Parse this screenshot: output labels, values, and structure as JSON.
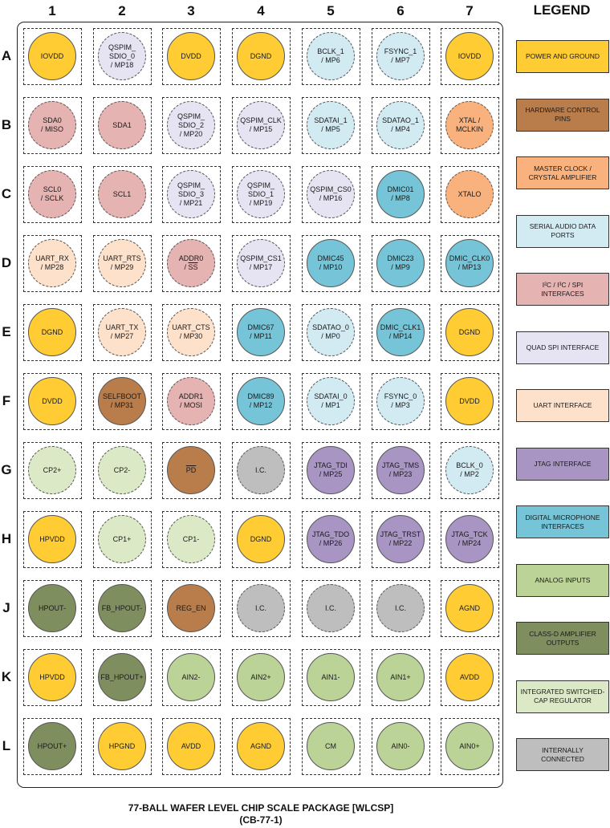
{
  "columns": [
    "1",
    "2",
    "3",
    "4",
    "5",
    "6",
    "7"
  ],
  "rows": [
    "A",
    "B",
    "C",
    "D",
    "E",
    "F",
    "G",
    "H",
    "J",
    "K",
    "L"
  ],
  "legend_title": "LEGEND",
  "legend": [
    {
      "key": "power",
      "label": "POWER AND GROUND",
      "color": "#FFCC33"
    },
    {
      "key": "hw",
      "label": "HARDWARE CONTROL PINS",
      "color": "#B97C4B"
    },
    {
      "key": "mclk",
      "label": "MASTER CLOCK / CRYSTAL AMPLIFIER",
      "color": "#F9B27E"
    },
    {
      "key": "serial",
      "label": "SERIAL AUDIO DATA PORTS",
      "color": "#D2EAF2"
    },
    {
      "key": "i2c",
      "label": "I²C / I³C / SPI INTERFACES",
      "color": "#E5B3B1"
    },
    {
      "key": "qspi",
      "label": "QUAD SPI INTERFACE",
      "color": "#E6E3F2"
    },
    {
      "key": "uart",
      "label": "UART INTERFACE",
      "color": "#FDE1CB"
    },
    {
      "key": "jtag",
      "label": "JTAG INTERFACE",
      "color": "#A895C4"
    },
    {
      "key": "dmic",
      "label": "DIGITAL MICROPHONE INTERFACES",
      "color": "#76C4D7"
    },
    {
      "key": "analog",
      "label": "ANALOG INPUTS",
      "color": "#BBD396"
    },
    {
      "key": "classd",
      "label": "CLASS-D AMPLIFIER OUTPUTS",
      "color": "#7E8E5F"
    },
    {
      "key": "chgpump",
      "label": "INTEGRATED SWITCHED-CAP REGULATOR",
      "color": "#DCE9C6"
    },
    {
      "key": "ic",
      "label": "INTERNALLY CONNECTED",
      "color": "#BEBEBE"
    }
  ],
  "balls": [
    [
      {
        "t": [
          "IOVDD"
        ],
        "c": "power"
      },
      {
        "t": [
          "QSPIM_",
          "SDIO_0",
          "/ MP18"
        ],
        "c": "qspi"
      },
      {
        "t": [
          "DVDD"
        ],
        "c": "power"
      },
      {
        "t": [
          "DGND"
        ],
        "c": "power"
      },
      {
        "t": [
          "BCLK_1",
          "/ MP6"
        ],
        "c": "serial"
      },
      {
        "t": [
          "FSYNC_1",
          "/ MP7"
        ],
        "c": "serial"
      },
      {
        "t": [
          "IOVDD"
        ],
        "c": "power"
      }
    ],
    [
      {
        "t": [
          "SDA0",
          "/ MISO"
        ],
        "c": "i2c"
      },
      {
        "t": [
          "SDA1"
        ],
        "c": "i2c"
      },
      {
        "t": [
          "QSPIM_",
          "SDIO_2",
          "/ MP20"
        ],
        "c": "qspi"
      },
      {
        "t": [
          "QSPIM_CLK",
          "/ MP15"
        ],
        "c": "qspi"
      },
      {
        "t": [
          "SDATAI_1",
          "/ MP5"
        ],
        "c": "serial"
      },
      {
        "t": [
          "SDATAO_1",
          "/ MP4"
        ],
        "c": "serial"
      },
      {
        "t": [
          "XTAL /",
          "MCLKIN"
        ],
        "c": "mclk"
      }
    ],
    [
      {
        "t": [
          "SCL0",
          "/ SCLK"
        ],
        "c": "i2c"
      },
      {
        "t": [
          "SCL1"
        ],
        "c": "i2c"
      },
      {
        "t": [
          "QSPIM_",
          "SDIO_3",
          "/ MP21"
        ],
        "c": "qspi"
      },
      {
        "t": [
          "QSPIM_",
          "SDIO_1",
          "/ MP19"
        ],
        "c": "qspi"
      },
      {
        "t": [
          "QSPIM_CS0",
          "/ MP16"
        ],
        "c": "qspi"
      },
      {
        "t": [
          "DMIC01",
          "/ MP8"
        ],
        "c": "dmic"
      },
      {
        "t": [
          "XTALO"
        ],
        "c": "mclk"
      }
    ],
    [
      {
        "t": [
          "UART_RX",
          "/ MP28"
        ],
        "c": "uart"
      },
      {
        "t": [
          "UART_RTS",
          "/ MP29"
        ],
        "c": "uart"
      },
      {
        "t": [
          "ADDR0",
          "/ SS"
        ],
        "c": "i2c"
      },
      {
        "t": [
          "QSPIM_CS1",
          "/ MP17"
        ],
        "c": "qspi"
      },
      {
        "t": [
          "DMIC45",
          "/ MP10"
        ],
        "c": "dmic"
      },
      {
        "t": [
          "DMIC23",
          "/ MP9"
        ],
        "c": "dmic"
      },
      {
        "t": [
          "DMIC_CLK0",
          "/ MP13"
        ],
        "c": "dmic"
      }
    ],
    [
      {
        "t": [
          "DGND"
        ],
        "c": "power"
      },
      {
        "t": [
          "UART_TX",
          "/ MP27"
        ],
        "c": "uart"
      },
      {
        "t": [
          "UART_CTS",
          "/ MP30"
        ],
        "c": "uart"
      },
      {
        "t": [
          "DMIC67",
          "/ MP11"
        ],
        "c": "dmic"
      },
      {
        "t": [
          "SDATAO_0",
          "/ MP0"
        ],
        "c": "serial"
      },
      {
        "t": [
          "DMIC_CLK1",
          "/ MP14"
        ],
        "c": "dmic"
      },
      {
        "t": [
          "DGND"
        ],
        "c": "power"
      }
    ],
    [
      {
        "t": [
          "DVDD"
        ],
        "c": "power"
      },
      {
        "t": [
          "SELFBOOT",
          "/ MP31"
        ],
        "c": "hw"
      },
      {
        "t": [
          "ADDR1",
          "/ MOSI"
        ],
        "c": "i2c"
      },
      {
        "t": [
          "DMIC89",
          "/ MP12"
        ],
        "c": "dmic"
      },
      {
        "t": [
          "SDATAI_0",
          "/ MP1"
        ],
        "c": "serial"
      },
      {
        "t": [
          "FSYNC_0",
          "/ MP3"
        ],
        "c": "serial"
      },
      {
        "t": [
          "DVDD"
        ],
        "c": "power"
      }
    ],
    [
      {
        "t": [
          "CP2+"
        ],
        "c": "chgpump"
      },
      {
        "t": [
          "CP2-"
        ],
        "c": "chgpump"
      },
      {
        "t": [
          "PD"
        ],
        "c": "hw"
      },
      {
        "t": [
          "I.C."
        ],
        "c": "ic"
      },
      {
        "t": [
          "JTAG_TDI",
          "/ MP25"
        ],
        "c": "jtag"
      },
      {
        "t": [
          "JTAG_TMS",
          "/ MP23"
        ],
        "c": "jtag"
      },
      {
        "t": [
          "BCLK_0",
          "/ MP2"
        ],
        "c": "serial"
      }
    ],
    [
      {
        "t": [
          "HPVDD"
        ],
        "c": "power"
      },
      {
        "t": [
          "CP1+"
        ],
        "c": "chgpump"
      },
      {
        "t": [
          "CP1-"
        ],
        "c": "chgpump"
      },
      {
        "t": [
          "DGND"
        ],
        "c": "power"
      },
      {
        "t": [
          "JTAG_TDO",
          "/ MP26"
        ],
        "c": "jtag"
      },
      {
        "t": [
          "JTAG_TRST",
          "/ MP22"
        ],
        "c": "jtag"
      },
      {
        "t": [
          "JTAG_TCK",
          "/ MP24"
        ],
        "c": "jtag"
      }
    ],
    [
      {
        "t": [
          "HPOUT-"
        ],
        "c": "classd"
      },
      {
        "t": [
          "FB_HPOUT-"
        ],
        "c": "classd"
      },
      {
        "t": [
          "REG_EN"
        ],
        "c": "hw"
      },
      {
        "t": [
          "I.C."
        ],
        "c": "ic"
      },
      {
        "t": [
          "I.C."
        ],
        "c": "ic"
      },
      {
        "t": [
          "I.C."
        ],
        "c": "ic"
      },
      {
        "t": [
          "AGND"
        ],
        "c": "power"
      }
    ],
    [
      {
        "t": [
          "HPVDD"
        ],
        "c": "power"
      },
      {
        "t": [
          "FB_HPOUT+"
        ],
        "c": "classd"
      },
      {
        "t": [
          "AIN2-"
        ],
        "c": "analog"
      },
      {
        "t": [
          "AIN2+"
        ],
        "c": "analog"
      },
      {
        "t": [
          "AIN1-"
        ],
        "c": "analog"
      },
      {
        "t": [
          "AIN1+"
        ],
        "c": "analog"
      },
      {
        "t": [
          "AVDD"
        ],
        "c": "power"
      }
    ],
    [
      {
        "t": [
          "HPOUT+"
        ],
        "c": "classd"
      },
      {
        "t": [
          "HPGND"
        ],
        "c": "power"
      },
      {
        "t": [
          "AVDD"
        ],
        "c": "power"
      },
      {
        "t": [
          "AGND"
        ],
        "c": "power"
      },
      {
        "t": [
          "CM"
        ],
        "c": "analog"
      },
      {
        "t": [
          "AIN0-"
        ],
        "c": "analog"
      },
      {
        "t": [
          "AIN0+"
        ],
        "c": "analog"
      }
    ]
  ],
  "overbar_labels": [
    "SS",
    "PD"
  ],
  "caption": {
    "line1": "77-BALL WAFER LEVEL CHIP SCALE PACKAGE [WLCSP]",
    "line2": "(CB-77-1)"
  }
}
